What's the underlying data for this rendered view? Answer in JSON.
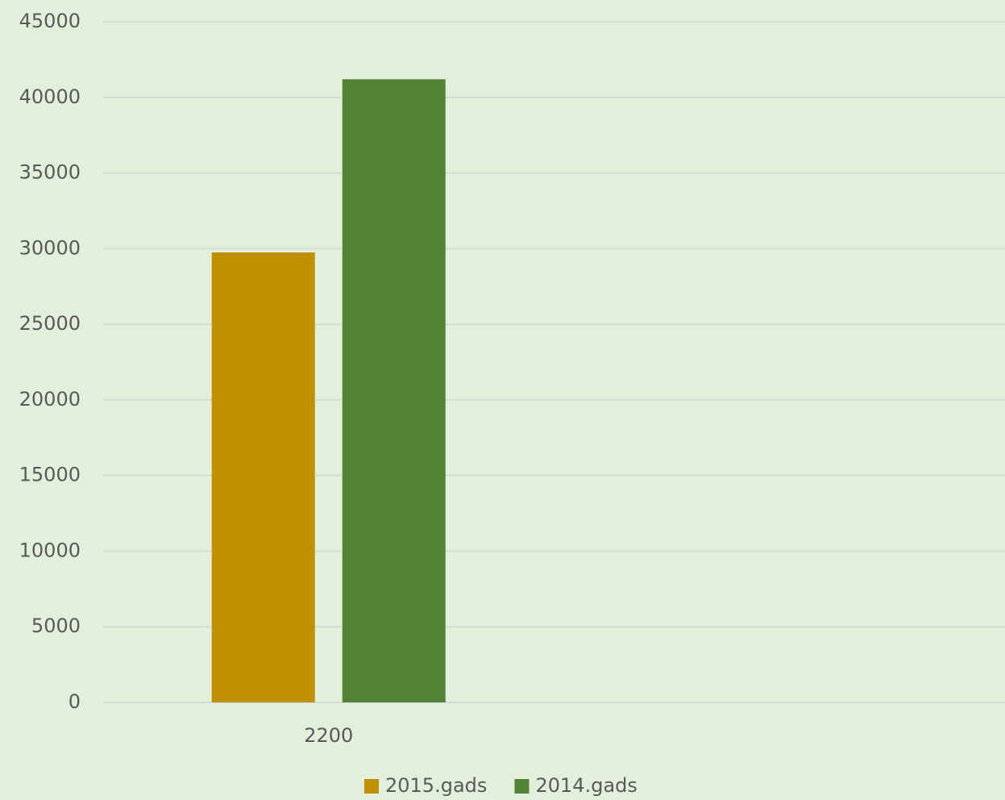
{
  "chart_data": {
    "type": "bar",
    "categories": [
      "2200",
      null
    ],
    "series": [
      {
        "name": "2015.gads",
        "color": "#bf9000",
        "values": [
          29750,
          null
        ]
      },
      {
        "name": "2014.gads",
        "color": "#548235",
        "values": [
          41200,
          null
        ]
      }
    ],
    "ylim": [
      0,
      45000
    ],
    "yticks": [
      0,
      5000,
      10000,
      15000,
      20000,
      25000,
      30000,
      35000,
      40000,
      45000
    ],
    "grid": true,
    "legend": "bottom"
  }
}
